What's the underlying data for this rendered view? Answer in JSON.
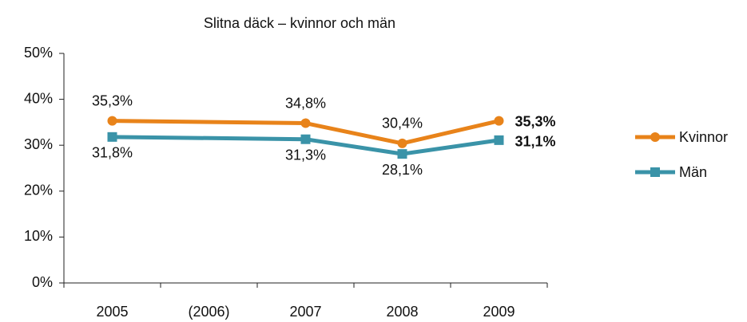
{
  "chart_data": {
    "type": "line",
    "title": "Slitna däck – kvinnor och män",
    "categories": [
      "2005",
      "(2006)",
      "2007",
      "2008",
      "2009"
    ],
    "series": [
      {
        "name": "Kvinnor",
        "color": "#e8831a",
        "marker": "circle",
        "values": [
          35.3,
          null,
          34.8,
          30.4,
          35.3
        ],
        "value_labels": [
          "35,3%",
          null,
          "34,8%",
          "30,4%",
          "35,3%"
        ]
      },
      {
        "name": "Män",
        "color": "#3a93a8",
        "marker": "square",
        "values": [
          31.8,
          null,
          31.3,
          28.1,
          31.1
        ],
        "value_labels": [
          "31,8%",
          null,
          "31,3%",
          "28,1%",
          "31,1%"
        ]
      }
    ],
    "span_gaps": true,
    "ylim": [
      0,
      50
    ],
    "yticks": [
      {
        "value": 0,
        "label": "0%"
      },
      {
        "value": 10,
        "label": "10%"
      },
      {
        "value": 20,
        "label": "20%"
      },
      {
        "value": 30,
        "label": "30%"
      },
      {
        "value": 40,
        "label": "40%"
      },
      {
        "value": 50,
        "label": "50%"
      }
    ],
    "legend": "right"
  }
}
